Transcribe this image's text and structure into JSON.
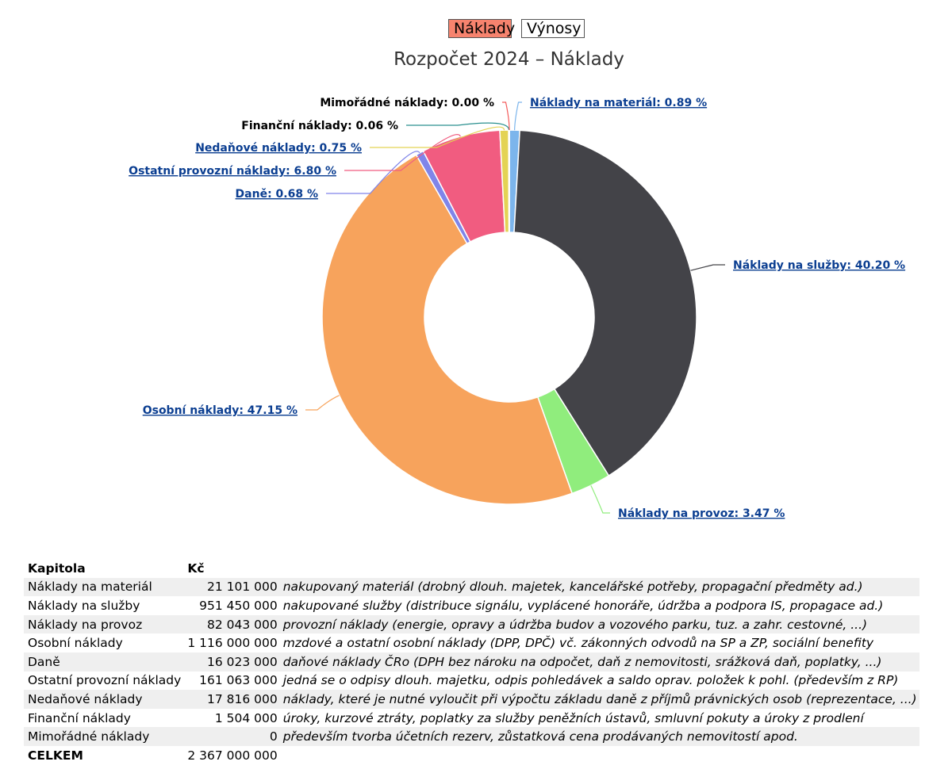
{
  "toggle": {
    "active_label": "Náklady",
    "inactive_label": "Výnosy"
  },
  "chart_data": {
    "type": "pie",
    "title": "Rozpočet 2024 – Náklady",
    "series": [
      {
        "name": "Náklady na materiál",
        "percent": 0.89,
        "label": "Náklady na materiál: 0.89 %",
        "color": "#7cb5ec",
        "link": true
      },
      {
        "name": "Náklady na služby",
        "percent": 40.2,
        "label": "Náklady na služby: 40.20 %",
        "color": "#434348",
        "link": true
      },
      {
        "name": "Náklady na provoz",
        "percent": 3.47,
        "label": "Náklady na provoz: 3.47 %",
        "color": "#90ed7d",
        "link": true
      },
      {
        "name": "Osobní náklady",
        "percent": 47.15,
        "label": "Osobní náklady: 47.15 %",
        "color": "#f7a35c",
        "link": true
      },
      {
        "name": "Daně",
        "percent": 0.68,
        "label": "Daně: 0.68 %",
        "color": "#8085e9",
        "link": true
      },
      {
        "name": "Ostatní provozní náklady",
        "percent": 6.8,
        "label": "Ostatní provozní náklady: 6.80 %",
        "color": "#f15c80",
        "link": true
      },
      {
        "name": "Nedaňové náklady",
        "percent": 0.75,
        "label": "Nedaňové náklady: 0.75 %",
        "color": "#e4d354",
        "link": true
      },
      {
        "name": "Finanční náklady",
        "percent": 0.06,
        "label": "Finanční náklady: 0.06 %",
        "color": "#2b908f",
        "link": false
      },
      {
        "name": "Mimořádné náklady",
        "percent": 0.0,
        "label": "Mimořádné náklady: 0.00 %",
        "color": "#f45b5b",
        "link": false
      }
    ]
  },
  "table": {
    "headers": {
      "chapter": "Kapitola",
      "amount": "Kč"
    },
    "rows": [
      {
        "chapter": "Náklady na materiál",
        "amount": "21 101 000",
        "desc": "nakupovaný materiál (drobný dlouh. majetek, kancelářské potřeby, propagační předměty ad.)"
      },
      {
        "chapter": "Náklady na služby",
        "amount": "951 450 000",
        "desc": "nakupované služby (distribuce signálu, vyplácené honoráře, údržba a podpora IS, propagace ad.)"
      },
      {
        "chapter": "Náklady na provoz",
        "amount": "82 043 000",
        "desc": "provozní náklady (energie, opravy a údržba budov a vozového parku, tuz. a zahr. cestovné, ...)"
      },
      {
        "chapter": "Osobní náklady",
        "amount": "1 116 000 000",
        "desc": "mzdové a ostatní osobní náklady (DPP, DPČ) vč. zákonných odvodů na SP a ZP, sociální benefity"
      },
      {
        "chapter": "Daně",
        "amount": "16 023 000",
        "desc": "daňové náklady ČRo (DPH bez nároku na odpočet, daň z nemovitosti, srážková daň, poplatky, ...)"
      },
      {
        "chapter": "Ostatní provozní náklady",
        "amount": "161 063 000",
        "desc": "jedná se o odpisy dlouh. majetku, odpis pohledávek a saldo oprav. položek k pohl. (především z RP)"
      },
      {
        "chapter": "Nedaňové náklady",
        "amount": "17 816 000",
        "desc": "náklady, které je nutné vyloučit při výpočtu základu daně z příjmů právnických osob (reprezentace, ...)"
      },
      {
        "chapter": "Finanční náklady",
        "amount": "1 504 000",
        "desc": "úroky, kurzové ztráty, poplatky za služby peněžních ústavů, smluvní pokuty a úroky z prodlení"
      },
      {
        "chapter": "Mimořádné náklady",
        "amount": "0",
        "desc": "především tvorba účetních rezerv, zůstatková cena prodávaných nemovitostí apod."
      }
    ],
    "total": {
      "chapter": "CELKEM",
      "amount": "2 367 000 000"
    }
  }
}
